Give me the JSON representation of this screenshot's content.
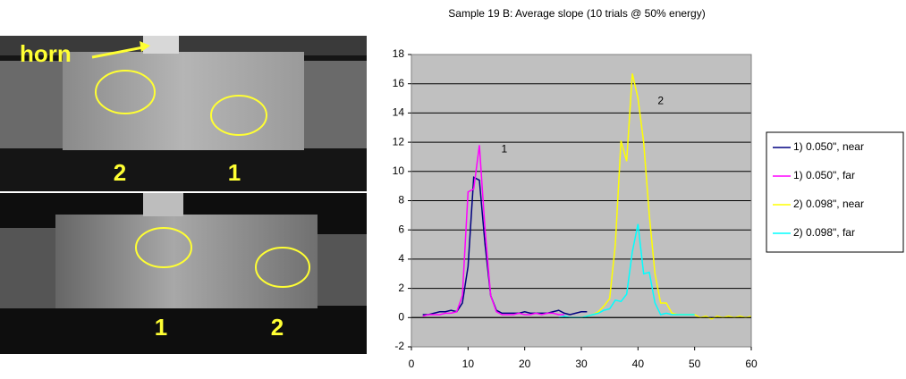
{
  "photos": {
    "top_labels": [
      "horn",
      "2",
      "1"
    ],
    "bottom_labels": [
      "1",
      "2"
    ]
  },
  "chart_data": {
    "type": "line",
    "title": "Sample 19 B: Average slope (10 trials @ 50% energy)",
    "xlim": [
      0,
      60
    ],
    "xticks": [
      0,
      10,
      20,
      30,
      40,
      50,
      60
    ],
    "ylim": [
      -2,
      18
    ],
    "yticks": [
      -2,
      0,
      2,
      4,
      6,
      8,
      10,
      12,
      14,
      16,
      18
    ],
    "grid": true,
    "legend": "right",
    "annotations": [
      {
        "text": "1",
        "x": 16.4,
        "y": 11.5
      },
      {
        "text": "2",
        "x": 44,
        "y": 14.8
      }
    ],
    "series": [
      {
        "name": "1) 0.050\", near",
        "color": "#000080",
        "x": [
          2,
          3,
          4,
          5,
          6,
          7,
          8,
          9,
          10,
          11,
          12,
          13,
          14,
          15,
          16,
          17,
          18,
          19,
          20,
          21,
          22,
          23,
          24,
          25,
          26,
          27,
          28,
          29,
          30,
          31
        ],
        "values": [
          0.2,
          0.2,
          0.3,
          0.4,
          0.4,
          0.5,
          0.4,
          1.0,
          3.5,
          9.6,
          9.4,
          5.0,
          1.5,
          0.5,
          0.3,
          0.3,
          0.3,
          0.3,
          0.4,
          0.3,
          0.3,
          0.3,
          0.3,
          0.4,
          0.5,
          0.3,
          0.2,
          0.3,
          0.4,
          0.4
        ]
      },
      {
        "name": "1) 0.050\", far",
        "color": "#ff00ff",
        "x": [
          2,
          3,
          4,
          5,
          6,
          7,
          8,
          9,
          10,
          11,
          12,
          13,
          14,
          15,
          16,
          17,
          18,
          19,
          20,
          21,
          22,
          23,
          24,
          25,
          26,
          27
        ],
        "values": [
          0.1,
          0.2,
          0.2,
          0.2,
          0.3,
          0.3,
          0.4,
          1.5,
          8.6,
          8.8,
          11.8,
          6.0,
          1.5,
          0.4,
          0.2,
          0.2,
          0.2,
          0.3,
          0.2,
          0.2,
          0.3,
          0.2,
          0.3,
          0.3,
          0.2,
          0.2
        ]
      },
      {
        "name": "2) 0.098\", near",
        "color": "#ffff00",
        "x": [
          28,
          29,
          30,
          31,
          32,
          33,
          34,
          35,
          36,
          37,
          38,
          39,
          40,
          41,
          42,
          43,
          44,
          45,
          46,
          47,
          48,
          49,
          50,
          51,
          52,
          53,
          54,
          55,
          56,
          57,
          58,
          59,
          60
        ],
        "values": [
          0,
          0,
          0,
          0.1,
          0.2,
          0.4,
          0.8,
          1.3,
          5.0,
          12.1,
          10.7,
          16.7,
          15.0,
          12.0,
          7.0,
          3.0,
          1.0,
          1.0,
          0.3,
          0.2,
          0.2,
          0.2,
          0.2,
          0.0,
          0.1,
          -0.1,
          0.1,
          0.0,
          0.1,
          0.0,
          0.1,
          0.0,
          0.1
        ]
      },
      {
        "name": "2) 0.098\", far",
        "color": "#00ffff",
        "x": [
          26,
          27,
          28,
          29,
          30,
          31,
          32,
          33,
          34,
          35,
          36,
          37,
          38,
          39,
          40,
          41,
          42,
          43,
          44,
          45,
          46,
          47,
          48,
          49,
          50
        ],
        "values": [
          0,
          0.1,
          0,
          0,
          0,
          0.1,
          0.2,
          0.3,
          0.5,
          0.6,
          1.2,
          1.1,
          1.6,
          4.5,
          6.4,
          3.0,
          3.1,
          1.0,
          0.2,
          0.3,
          0.2,
          0.2,
          0.2,
          0.2,
          0.2
        ]
      }
    ]
  }
}
